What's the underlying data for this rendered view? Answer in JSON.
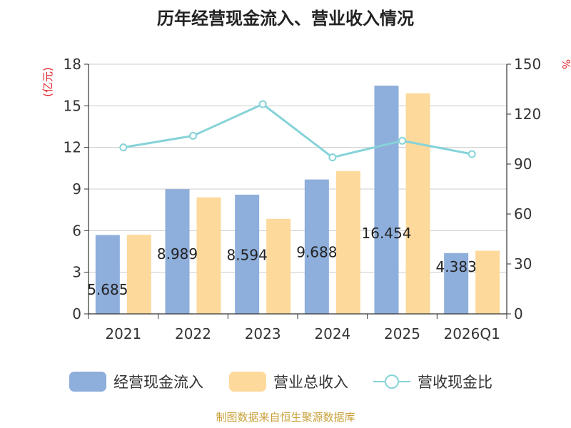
{
  "chart_data": {
    "type": "bar",
    "title": "历年经营现金流入、营业收入情况",
    "categories": [
      "2021",
      "2022",
      "2023",
      "2024",
      "2025",
      "2026Q1"
    ],
    "series": [
      {
        "name": "经营现金流入",
        "type": "bar",
        "axis": "left",
        "color": "#8eaedb",
        "values": [
          5.685,
          8.989,
          8.594,
          9.688,
          16.454,
          4.383
        ],
        "labels": [
          "5.685",
          "8.989",
          "8.594",
          "9.688",
          "16.454",
          "4.383"
        ]
      },
      {
        "name": "营业总收入",
        "type": "bar",
        "axis": "left",
        "color": "#fdd99b",
        "values": [
          5.7,
          8.4,
          6.85,
          10.3,
          15.9,
          4.55
        ]
      },
      {
        "name": "营收现金比",
        "type": "line",
        "axis": "right",
        "color": "#86d3d8",
        "values": [
          100,
          107,
          126,
          94,
          104,
          96
        ]
      }
    ],
    "y_left": {
      "unit": "(亿元)",
      "min": 0,
      "max": 18,
      "ticks": [
        0,
        3,
        6,
        9,
        12,
        15,
        18
      ]
    },
    "y_right": {
      "unit": "%",
      "min": 0,
      "max": 150,
      "ticks": [
        0,
        30,
        60,
        90,
        120,
        150
      ]
    },
    "grid": true,
    "legend_position": "bottom"
  },
  "source": "制图数据来自恒生聚源数据库"
}
